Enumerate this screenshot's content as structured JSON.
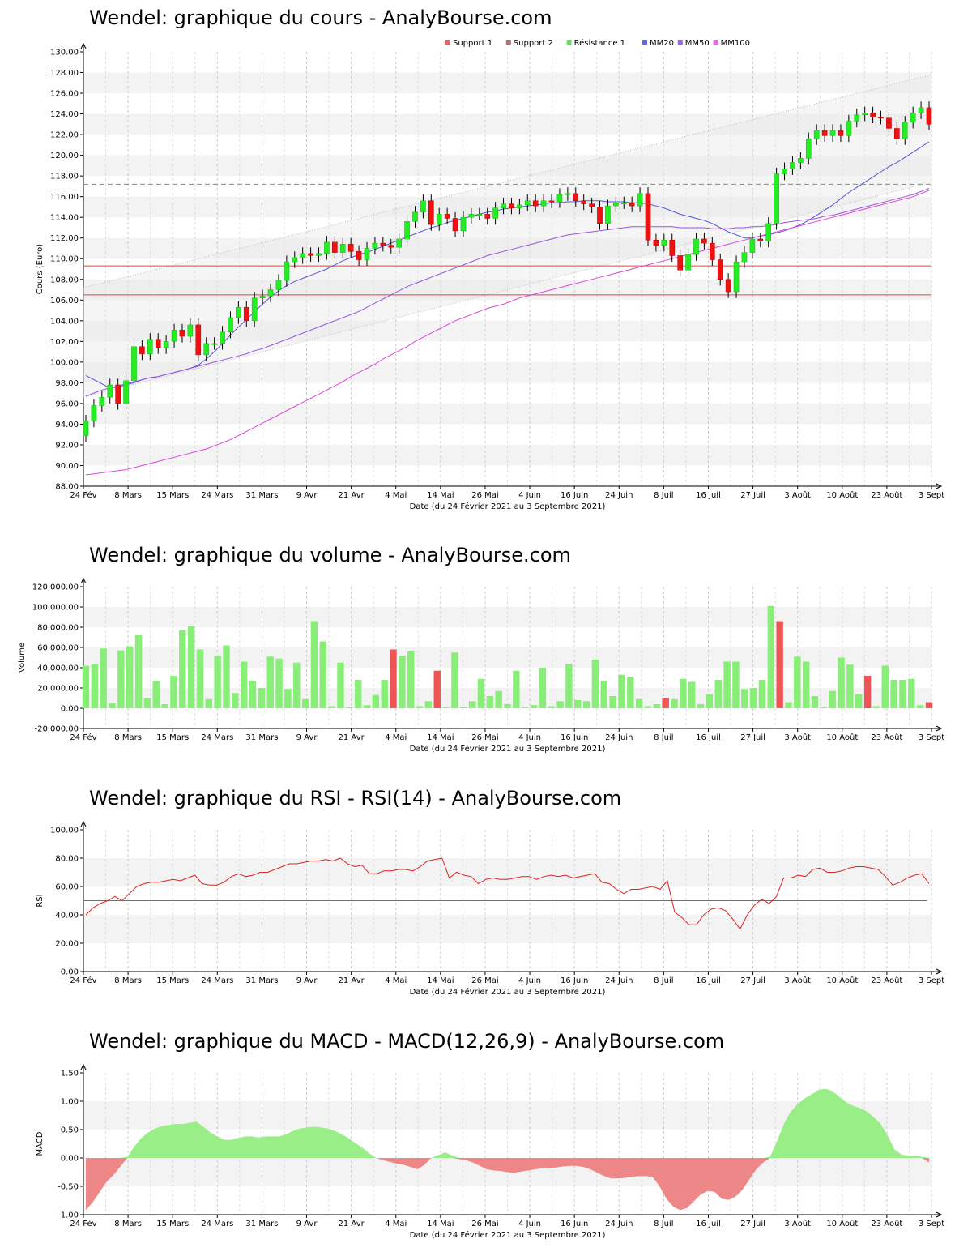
{
  "months": [
    "24 Fév",
    "8 Mars",
    "15 Mars",
    "24 Mars",
    "31 Mars",
    "9 Avr",
    "21 Avr",
    "4 Mai",
    "14 Mai",
    "26 Mai",
    "4 Juin",
    "16 Juin",
    "24 Juin",
    "8 Juil",
    "16 Juil",
    "27 Juil",
    "3 Août",
    "10 Août",
    "23 Août",
    "3 Sept"
  ],
  "xlabel": "Date (du 24 Février 2021 au 3 Septembre 2021)",
  "colors": {
    "up": "#22ee22",
    "down": "#ee1111",
    "vol_up": "#88ee77",
    "vol_down": "#ee5555",
    "support": "#dd4444",
    "resistance": "#44bb44",
    "mm20": "#5555dd",
    "mm50": "#9955dd",
    "mm100": "#dd44dd",
    "rsi": "#dd2222",
    "macd_pos": "#99ee88",
    "macd_neg": "#ee8888"
  },
  "price": {
    "title": "Wendel: graphique du cours - AnalyBourse.com",
    "ylabel": "Cours (Euro)",
    "yticks": [
      "130.00",
      "128.00",
      "126.00",
      "124.00",
      "122.00",
      "120.00",
      "118.00",
      "116.00",
      "114.00",
      "112.00",
      "110.00",
      "108.00",
      "106.00",
      "104.00",
      "102.00",
      "100.00",
      "98.00",
      "96.00",
      "94.00",
      "92.00",
      "90.00",
      "88.00"
    ],
    "legend": [
      {
        "label": "Support 1",
        "icon": "square-red"
      },
      {
        "label": "Support 2",
        "icon": "square-brown"
      },
      {
        "label": "Résistance 1",
        "icon": "square-green"
      },
      {
        "label": "MM20",
        "icon": "square-blue"
      },
      {
        "label": "MM50",
        "icon": "square-purple"
      },
      {
        "label": "MM100",
        "icon": "square-magenta"
      }
    ]
  },
  "volume": {
    "title": "Wendel: graphique du volume - AnalyBourse.com",
    "ylabel": "Volume",
    "yticks": [
      "120,000.00",
      "100,000.00",
      "80,000.00",
      "60,000.00",
      "40,000.00",
      "20,000.00",
      "0.00",
      "-20,000.00"
    ]
  },
  "rsi": {
    "title": "Wendel: graphique du RSI - RSI(14) - AnalyBourse.com",
    "ylabel": "RSI",
    "yticks": [
      "100.00",
      "80.00",
      "60.00",
      "40.00",
      "20.00",
      "0.00"
    ]
  },
  "macd": {
    "title": "Wendel: graphique du MACD - MACD(12,26,9) - AnalyBourse.com",
    "ylabel": "MACD",
    "yticks": [
      "1.50",
      "1.00",
      "0.50",
      "0.00",
      "-0.50",
      "-1.00"
    ]
  },
  "chart_data": [
    {
      "type": "candlestick",
      "title": "Wendel: graphique du cours - AnalyBourse.com",
      "xlabel": "Date (du 24 Février 2021 au 3 Septembre 2021)",
      "ylabel": "Cours (Euro)",
      "ylim": [
        88,
        130
      ],
      "support_1": 109.3,
      "support_2": 106.5,
      "resistance_1": 117.2,
      "close": [
        94.3,
        95.8,
        96.6,
        97.8,
        96.0,
        98.2,
        101.5,
        100.8,
        102.2,
        101.4,
        102.0,
        103.1,
        102.5,
        103.6,
        100.7,
        101.8,
        101.8,
        102.9,
        104.3,
        105.3,
        104.0,
        106.2,
        106.4,
        107.0,
        107.9,
        109.7,
        110.1,
        110.5,
        110.3,
        110.5,
        111.6,
        110.6,
        111.4,
        110.7,
        109.9,
        111.0,
        111.5,
        111.3,
        111.1,
        111.9,
        113.6,
        114.5,
        115.6,
        113.3,
        114.3,
        113.9,
        112.7,
        114.0,
        114.3,
        114.3,
        113.9,
        114.9,
        115.3,
        114.9,
        115.2,
        115.6,
        115.1,
        115.6,
        115.5,
        116.2,
        116.3,
        115.6,
        115.3,
        115.0,
        113.4,
        115.1,
        115.4,
        115.4,
        115.1,
        116.3,
        111.8,
        111.3,
        111.8,
        110.3,
        108.9,
        110.4,
        111.9,
        111.5,
        109.9,
        108.0,
        106.8,
        109.7,
        110.6,
        111.9,
        111.7,
        113.4,
        118.2,
        118.7,
        119.3,
        119.7,
        121.6,
        122.4,
        121.9,
        122.4,
        121.9,
        123.3,
        123.9,
        124.1,
        123.7,
        123.6,
        122.6,
        121.6,
        123.2,
        124.1,
        124.6,
        123.0
      ]
    },
    {
      "type": "line",
      "title": "MM20 / MM50 / MM100",
      "series": [
        {
          "name": "MM20",
          "values": [
            98.7,
            98.3,
            97.9,
            97.5,
            97.6,
            97.8,
            98.0,
            98.3,
            98.5,
            98.6,
            98.8,
            99.0,
            99.2,
            99.4,
            99.7,
            100.3,
            101.0,
            101.8,
            102.6,
            103.4,
            104.1,
            104.9,
            105.6,
            106.3,
            106.9,
            107.4,
            107.8,
            108.1,
            108.4,
            108.7,
            109.0,
            109.4,
            109.8,
            110.1,
            110.4,
            110.6,
            110.9,
            111.2,
            111.5,
            111.8,
            112.1,
            112.4,
            112.7,
            113.0,
            113.2,
            113.5,
            113.7,
            113.9,
            114.1,
            114.3,
            114.5,
            114.6,
            114.8,
            114.9,
            115.0,
            115.1,
            115.2,
            115.3,
            115.4,
            115.4,
            115.5,
            115.5,
            115.6,
            115.6,
            115.6,
            115.5,
            115.5,
            115.5,
            115.4,
            115.4,
            115.3,
            115.1,
            114.9,
            114.6,
            114.3,
            114.1,
            113.9,
            113.7,
            113.4,
            113.0,
            112.6,
            112.3,
            112.0,
            112.0,
            112.2,
            112.3,
            112.5,
            112.7,
            113.0,
            113.3,
            113.7,
            114.2,
            114.7,
            115.2,
            115.8,
            116.4,
            116.9,
            117.4,
            117.9,
            118.4,
            118.9,
            119.3,
            119.8,
            120.3,
            120.8,
            121.3
          ]
        },
        {
          "name": "MM50",
          "values": [
            96.7,
            97.0,
            97.3,
            97.5,
            97.7,
            97.9,
            98.1,
            98.3,
            98.5,
            98.6,
            98.8,
            99.0,
            99.2,
            99.4,
            99.6,
            99.8,
            100.0,
            100.2,
            100.4,
            100.6,
            100.8,
            101.1,
            101.3,
            101.6,
            101.9,
            102.2,
            102.5,
            102.8,
            103.1,
            103.4,
            103.7,
            104.0,
            104.3,
            104.6,
            104.9,
            105.3,
            105.7,
            106.1,
            106.5,
            106.9,
            107.3,
            107.6,
            107.9,
            108.2,
            108.5,
            108.8,
            109.1,
            109.4,
            109.7,
            110.0,
            110.3,
            110.5,
            110.7,
            110.9,
            111.1,
            111.3,
            111.5,
            111.7,
            111.9,
            112.1,
            112.3,
            112.4,
            112.5,
            112.6,
            112.7,
            112.8,
            112.9,
            113.0,
            113.1,
            113.1,
            113.1,
            113.1,
            113.1,
            113.1,
            113.0,
            113.0,
            113.0,
            113.0,
            112.9,
            112.9,
            112.9,
            113.0,
            113.0,
            113.1,
            113.1,
            113.2,
            113.3,
            113.5,
            113.6,
            113.7,
            113.8,
            113.9,
            114.1,
            114.2,
            114.4,
            114.6,
            114.8,
            115.0,
            115.2,
            115.4,
            115.6,
            115.8,
            116.0,
            116.2,
            116.5,
            116.8
          ]
        },
        {
          "name": "MM100",
          "values": [
            89.1,
            89.2,
            89.3,
            89.4,
            89.5,
            89.6,
            89.8,
            90.0,
            90.2,
            90.4,
            90.6,
            90.8,
            91.0,
            91.2,
            91.4,
            91.6,
            91.9,
            92.2,
            92.5,
            92.9,
            93.3,
            93.7,
            94.1,
            94.5,
            94.9,
            95.3,
            95.7,
            96.1,
            96.5,
            96.9,
            97.3,
            97.7,
            98.1,
            98.6,
            99.0,
            99.4,
            99.8,
            100.3,
            100.7,
            101.1,
            101.5,
            102.0,
            102.4,
            102.8,
            103.2,
            103.6,
            104.0,
            104.3,
            104.6,
            104.9,
            105.2,
            105.4,
            105.6,
            105.9,
            106.2,
            106.4,
            106.6,
            106.8,
            107.0,
            107.2,
            107.4,
            107.6,
            107.8,
            108.0,
            108.2,
            108.4,
            108.6,
            108.8,
            109.0,
            109.2,
            109.4,
            109.6,
            109.8,
            110.0,
            110.2,
            110.4,
            110.6,
            110.8,
            111.0,
            111.2,
            111.4,
            111.6,
            111.8,
            112.0,
            112.2,
            112.4,
            112.6,
            112.8,
            113.0,
            113.2,
            113.4,
            113.6,
            113.8,
            114.0,
            114.2,
            114.4,
            114.6,
            114.8,
            115.0,
            115.2,
            115.4,
            115.6,
            115.8,
            116.0,
            116.3,
            116.6
          ]
        }
      ]
    },
    {
      "type": "bar",
      "title": "Wendel: graphique du volume - AnalyBourse.com",
      "xlabel": "Date (du 24 Février 2021 au 3 Septembre 2021)",
      "ylabel": "Volume",
      "ylim": [
        -20000,
        120000
      ],
      "values": [
        42000,
        44000,
        59000,
        5000,
        57000,
        61000,
        72000,
        10000,
        27000,
        4000,
        32000,
        77000,
        81000,
        58000,
        9000,
        52000,
        62000,
        15000,
        46000,
        27000,
        20000,
        51000,
        49000,
        19000,
        45000,
        9000,
        86000,
        66000,
        2000,
        45000,
        1000,
        28000,
        3000,
        13000,
        28000,
        58000,
        52000,
        56000,
        2000,
        7000,
        37000,
        1000,
        55000,
        1000,
        7000,
        29000,
        12000,
        17000,
        4000,
        37000,
        1000,
        3000,
        40000,
        2000,
        7000,
        44000,
        8000,
        7000,
        48000,
        27000,
        12000,
        33000,
        31000,
        9000,
        2000,
        4000,
        10000,
        9000,
        29000,
        26000,
        4000,
        14000,
        28000,
        46000,
        46000,
        19000,
        20000,
        28000,
        101000,
        86000,
        6000,
        51000,
        46000,
        12000,
        1000,
        17000,
        50000,
        43000,
        14000,
        32000,
        2000,
        42000,
        28000,
        28000,
        29000,
        3000,
        6000
      ],
      "down_indices": [
        35,
        40,
        66,
        79,
        89,
        96
      ]
    },
    {
      "type": "line",
      "title": "Wendel: graphique du RSI - RSI(14) - AnalyBourse.com",
      "xlabel": "Date (du 24 Février 2021 au 3 Septembre 2021)",
      "ylabel": "RSI",
      "ylim": [
        0,
        100
      ],
      "reference_line": 50,
      "values": [
        40,
        45,
        48,
        50,
        53,
        50,
        55,
        60,
        62,
        63,
        63,
        64,
        65,
        64,
        66,
        68,
        62,
        61,
        61,
        63,
        67,
        69,
        67,
        68,
        70,
        70,
        72,
        74,
        76,
        76,
        77,
        78,
        78,
        79,
        78,
        80,
        76,
        74,
        75,
        69,
        69,
        71,
        71,
        72,
        72,
        71,
        74,
        78,
        79,
        80,
        66,
        70,
        68,
        67,
        62,
        65,
        66,
        65,
        65,
        66,
        67,
        67,
        65,
        67,
        68,
        67,
        68,
        66,
        67,
        68,
        69,
        63,
        62,
        58,
        55,
        58,
        58,
        59,
        60,
        58,
        64,
        42,
        38,
        33,
        33,
        40,
        44,
        45,
        43,
        37,
        30,
        40,
        47,
        51,
        48,
        53,
        66,
        66,
        68,
        67,
        72,
        73,
        70,
        70,
        71,
        73,
        74,
        74,
        73,
        72,
        67,
        61,
        63,
        66,
        68,
        69,
        62
      ]
    },
    {
      "type": "area",
      "title": "Wendel: graphique du MACD - MACD(12,26,9) - AnalyBourse.com",
      "xlabel": "Date (du 24 Février 2021 au 3 Septembre 2021)",
      "ylabel": "MACD",
      "ylim": [
        -1.0,
        1.5
      ],
      "values": [
        -0.92,
        -0.78,
        -0.6,
        -0.42,
        -0.3,
        -0.15,
        0.02,
        0.2,
        0.35,
        0.45,
        0.52,
        0.56,
        0.58,
        0.6,
        0.6,
        0.62,
        0.64,
        0.55,
        0.45,
        0.38,
        0.32,
        0.32,
        0.35,
        0.38,
        0.38,
        0.36,
        0.38,
        0.38,
        0.38,
        0.42,
        0.48,
        0.52,
        0.54,
        0.55,
        0.54,
        0.52,
        0.48,
        0.42,
        0.35,
        0.26,
        0.18,
        0.08,
        0.0,
        -0.04,
        -0.07,
        -0.1,
        -0.12,
        -0.16,
        -0.2,
        -0.12,
        0.0,
        0.05,
        0.1,
        0.04,
        -0.02,
        -0.04,
        -0.08,
        -0.14,
        -0.2,
        -0.22,
        -0.23,
        -0.25,
        -0.26,
        -0.24,
        -0.22,
        -0.2,
        -0.18,
        -0.19,
        -0.17,
        -0.15,
        -0.14,
        -0.14,
        -0.16,
        -0.2,
        -0.26,
        -0.32,
        -0.36,
        -0.36,
        -0.35,
        -0.33,
        -0.32,
        -0.32,
        -0.33,
        -0.5,
        -0.72,
        -0.86,
        -0.92,
        -0.88,
        -0.76,
        -0.64,
        -0.58,
        -0.6,
        -0.72,
        -0.74,
        -0.68,
        -0.56,
        -0.38,
        -0.2,
        -0.08,
        0.02,
        0.3,
        0.6,
        0.82,
        0.95,
        1.05,
        1.12,
        1.2,
        1.22,
        1.18,
        1.08,
        0.98,
        0.92,
        0.88,
        0.82,
        0.72,
        0.6,
        0.4,
        0.15,
        0.06,
        0.04,
        0.04,
        0.02,
        -0.08
      ]
    }
  ]
}
